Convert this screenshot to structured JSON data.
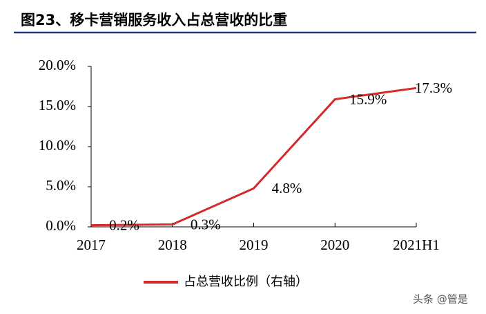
{
  "chart_data": {
    "type": "line",
    "title": "图23、移卡营销服务收入占总营收的比重",
    "categories": [
      "2017",
      "2018",
      "2019",
      "2020",
      "2021H1"
    ],
    "series": [
      {
        "name": "占总营收比例（右轴）",
        "color": "#d42a2a",
        "values": [
          0.2,
          0.3,
          4.8,
          15.9,
          17.3
        ],
        "value_labels": [
          "0.2%",
          "0.3%",
          "4.8%",
          "15.9%",
          "17.3%"
        ]
      }
    ],
    "ylim": [
      0,
      20
    ],
    "yticks": [
      {
        "value": 0,
        "label": "0.0%"
      },
      {
        "value": 5,
        "label": "5.0%"
      },
      {
        "value": 10,
        "label": "10.0%"
      },
      {
        "value": 15,
        "label": "15.0%"
      },
      {
        "value": 20,
        "label": "20.0%"
      }
    ],
    "watermark": "头条 @管是"
  }
}
